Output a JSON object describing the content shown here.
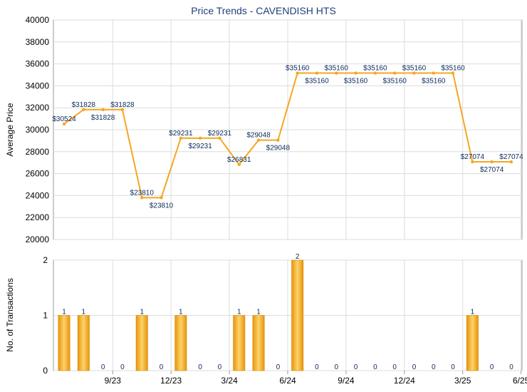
{
  "chart_data": [
    {
      "type": "line",
      "title": "Price Trends - CAVENDISH HTS",
      "ylabel": "Average Price",
      "ylim": [
        20000,
        40000
      ],
      "yticks": [
        20000,
        22000,
        24000,
        26000,
        28000,
        30000,
        32000,
        34000,
        36000,
        38000,
        40000
      ],
      "grid": true,
      "color": "#f5a623",
      "points": [
        {
          "x": 0,
          "y": 30524,
          "label": "$30524",
          "pos": "above"
        },
        {
          "x": 1,
          "y": 31828,
          "label": "$31828",
          "pos": "above"
        },
        {
          "x": 2,
          "y": 31828,
          "label": "$31828",
          "pos": "below"
        },
        {
          "x": 3,
          "y": 31828,
          "label": "$31828",
          "pos": "above"
        },
        {
          "x": 4,
          "y": 23810,
          "label": "$23810",
          "pos": "above"
        },
        {
          "x": 5,
          "y": 23810,
          "label": "$23810",
          "pos": "below"
        },
        {
          "x": 6,
          "y": 29231,
          "label": "$29231",
          "pos": "above"
        },
        {
          "x": 7,
          "y": 29231,
          "label": "$29231",
          "pos": "below"
        },
        {
          "x": 8,
          "y": 29231,
          "label": "$29231",
          "pos": "above"
        },
        {
          "x": 9,
          "y": 26831,
          "label": "$26831",
          "pos": "above"
        },
        {
          "x": 10,
          "y": 29048,
          "label": "$29048",
          "pos": "above"
        },
        {
          "x": 11,
          "y": 29048,
          "label": "$29048",
          "pos": "below"
        },
        {
          "x": 12,
          "y": 35160,
          "label": "$35160",
          "pos": "above"
        },
        {
          "x": 13,
          "y": 35160,
          "label": "$35160",
          "pos": "below"
        },
        {
          "x": 14,
          "y": 35160,
          "label": "$35160",
          "pos": "above"
        },
        {
          "x": 15,
          "y": 35160,
          "label": "$35160",
          "pos": "below"
        },
        {
          "x": 16,
          "y": 35160,
          "label": "$35160",
          "pos": "above"
        },
        {
          "x": 17,
          "y": 35160,
          "label": "$35160",
          "pos": "below"
        },
        {
          "x": 18,
          "y": 35160,
          "label": "$35160",
          "pos": "above"
        },
        {
          "x": 19,
          "y": 35160,
          "label": "$35160",
          "pos": "below"
        },
        {
          "x": 20,
          "y": 35160,
          "label": "$35160",
          "pos": "above"
        },
        {
          "x": 21,
          "y": 27074,
          "label": "$27074",
          "pos": "above"
        },
        {
          "x": 22,
          "y": 27074,
          "label": "$27074",
          "pos": "below"
        },
        {
          "x": 23,
          "y": 27074,
          "label": "$27074",
          "pos": "above"
        }
      ]
    },
    {
      "type": "bar",
      "ylabel": "No. of Transactions",
      "ylim": [
        0,
        2
      ],
      "yticks": [
        0,
        1,
        2
      ],
      "grid": true,
      "color": "#f5a623",
      "values": [
        1,
        1,
        0,
        0,
        1,
        0,
        1,
        0,
        0,
        1,
        1,
        0,
        2,
        0,
        0,
        0,
        0,
        0,
        0,
        0,
        0,
        1,
        0,
        0
      ],
      "xticks": [
        {
          "label": "9/23",
          "x": 2.5
        },
        {
          "label": "12/23",
          "x": 5.5
        },
        {
          "label": "3/24",
          "x": 8.5
        },
        {
          "label": "6/24",
          "x": 11.5
        },
        {
          "label": "9/24",
          "x": 14.5
        },
        {
          "label": "12/24",
          "x": 17.5
        },
        {
          "label": "3/25",
          "x": 20.5
        },
        {
          "label": "6/25",
          "x": 23.5
        }
      ]
    }
  ]
}
